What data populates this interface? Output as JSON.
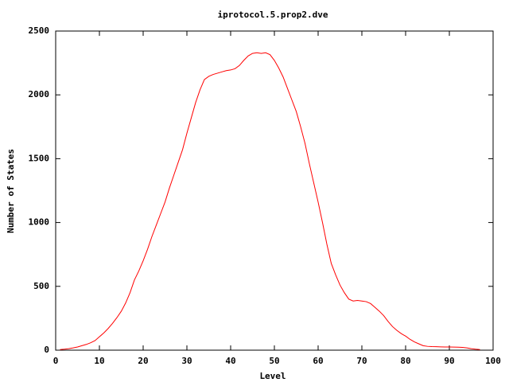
{
  "chart_data": {
    "type": "line",
    "title": "iprotocol.5.prop2.dve",
    "x_label": "Level",
    "y_label": "Number of States",
    "x": [
      1,
      2,
      3,
      4,
      5,
      6,
      7,
      8,
      9,
      10,
      11,
      12,
      13,
      14,
      15,
      16,
      17,
      18,
      19,
      20,
      21,
      22,
      23,
      24,
      25,
      26,
      27,
      28,
      29,
      30,
      31,
      32,
      33,
      34,
      35,
      36,
      37,
      38,
      39,
      40,
      41,
      42,
      43,
      44,
      45,
      46,
      47,
      48,
      49,
      50,
      51,
      52,
      53,
      54,
      55,
      56,
      57,
      58,
      59,
      60,
      61,
      62,
      63,
      64,
      65,
      66,
      67,
      68,
      69,
      70,
      71,
      72,
      73,
      74,
      75,
      76,
      77,
      78,
      79,
      80,
      81,
      82,
      83,
      84,
      85,
      86,
      87,
      88,
      89,
      90,
      91,
      92,
      93,
      94,
      95,
      96,
      97
    ],
    "series": [
      {
        "color": "#ff0000",
        "values": [
          5,
          8,
          12,
          18,
          25,
          35,
          45,
          58,
          75,
          105,
          135,
          170,
          210,
          255,
          305,
          370,
          450,
          550,
          620,
          700,
          790,
          890,
          980,
          1070,
          1160,
          1270,
          1370,
          1470,
          1570,
          1700,
          1820,
          1940,
          2040,
          2120,
          2145,
          2160,
          2170,
          2180,
          2190,
          2195,
          2205,
          2230,
          2270,
          2305,
          2325,
          2330,
          2325,
          2330,
          2315,
          2270,
          2210,
          2140,
          2050,
          1960,
          1870,
          1750,
          1620,
          1460,
          1310,
          1160,
          1000,
          830,
          680,
          590,
          510,
          450,
          400,
          385,
          390,
          385,
          380,
          365,
          335,
          305,
          270,
          225,
          185,
          155,
          130,
          110,
          85,
          65,
          50,
          35,
          30,
          28,
          27,
          26,
          25,
          25,
          24,
          23,
          22,
          18,
          12,
          8,
          5
        ]
      }
    ],
    "xlim": [
      0,
      100
    ],
    "xticks": [
      0,
      10,
      20,
      30,
      40,
      50,
      60,
      70,
      80,
      90,
      100
    ],
    "ylim": [
      0,
      2500
    ],
    "yticks": [
      0,
      500,
      1000,
      1500,
      2000,
      2500
    ]
  }
}
